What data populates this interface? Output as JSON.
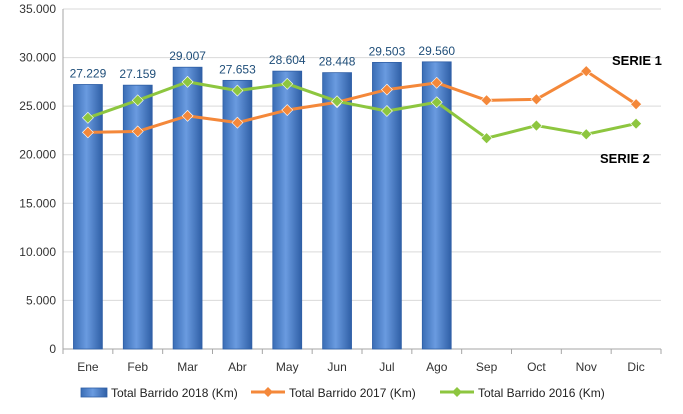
{
  "chart_data": {
    "type": "bar",
    "categories": [
      "Ene",
      "Feb",
      "Mar",
      "Abr",
      "May",
      "Jun",
      "Jul",
      "Ago",
      "Sep",
      "Oct",
      "Nov",
      "Dic"
    ],
    "ylim": [
      0,
      35000
    ],
    "yticks": [
      {
        "value": 0,
        "label": "0"
      },
      {
        "value": 5000,
        "label": "5.000"
      },
      {
        "value": 10000,
        "label": "10.000"
      },
      {
        "value": 15000,
        "label": "15.000"
      },
      {
        "value": 20000,
        "label": "20.000"
      },
      {
        "value": 25000,
        "label": "25.000"
      },
      {
        "value": 30000,
        "label": "30.000"
      },
      {
        "value": 35000,
        "label": "35.000"
      }
    ],
    "grid": true,
    "legend_position": "bottom",
    "series": [
      {
        "name": "Total Barrido 2018 (Km)",
        "type": "bar",
        "color": "#4a7ec9",
        "values": [
          27229,
          27159,
          29007,
          27653,
          28604,
          28448,
          29503,
          29560,
          null,
          null,
          null,
          null
        ],
        "data_labels": [
          "27.229",
          "27.159",
          "29.007",
          "27.653",
          "28.604",
          "28.448",
          "29.503",
          "29.560"
        ]
      },
      {
        "name": "Total Barrido 2017 (Km)",
        "type": "line",
        "color": "#f4883a",
        "values": [
          22300,
          22400,
          24000,
          23300,
          24600,
          25400,
          26700,
          27400,
          25600,
          25700,
          28600,
          25200
        ]
      },
      {
        "name": "Total Barrido 2016 (Km)",
        "type": "line",
        "color": "#8dc63f",
        "values": [
          23800,
          25600,
          27500,
          26600,
          27300,
          25500,
          24500,
          25400,
          21700,
          23000,
          22100,
          23200
        ]
      }
    ],
    "annotations": [
      "SERIE 1",
      "SERIE 2"
    ]
  }
}
